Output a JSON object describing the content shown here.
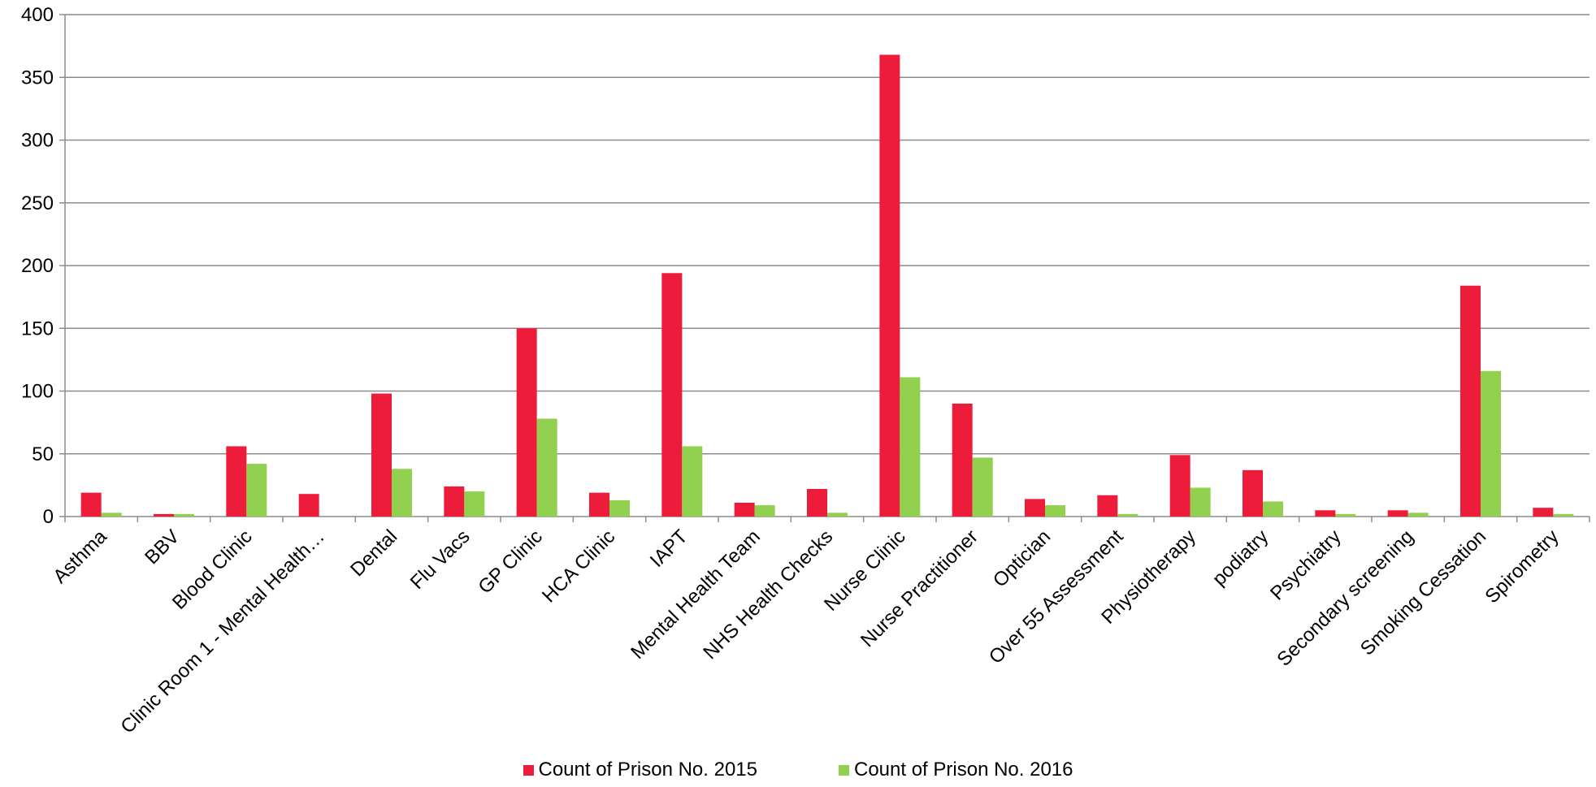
{
  "chart_data": {
    "type": "bar",
    "title": "",
    "xlabel": "",
    "ylabel": "",
    "ylim": [
      0,
      400
    ],
    "yticks": [
      0,
      50,
      100,
      150,
      200,
      250,
      300,
      350,
      400
    ],
    "grid": true,
    "legend_position": "bottom",
    "categories": [
      "Asthma",
      "BBV",
      "Blood Clinic",
      "Clinic Room 1 - Mental Health…",
      "Dental",
      "Flu Vacs",
      "GP Clinic",
      "HCA Clinic",
      "IAPT",
      "Mental Health Team",
      "NHS Health Checks",
      "Nurse Clinic",
      "Nurse Practitioner",
      "Optician",
      "Over 55 Assessment",
      "Physiotherapy",
      "podiatry",
      "Psychiatry",
      "Secondary screening",
      "Smoking Cessation",
      "Spirometry"
    ],
    "series": [
      {
        "name": "Count of Prison No. 2015",
        "color": "#ed1c3a",
        "values": [
          19,
          2,
          56,
          18,
          98,
          24,
          150,
          19,
          194,
          11,
          22,
          368,
          90,
          14,
          17,
          49,
          37,
          5,
          5,
          184,
          7
        ]
      },
      {
        "name": "Count of Prison No. 2016",
        "color": "#92d050",
        "values": [
          3,
          2,
          42,
          0,
          38,
          20,
          78,
          13,
          56,
          9,
          3,
          111,
          47,
          9,
          2,
          23,
          12,
          2,
          3,
          116,
          2
        ]
      }
    ]
  }
}
